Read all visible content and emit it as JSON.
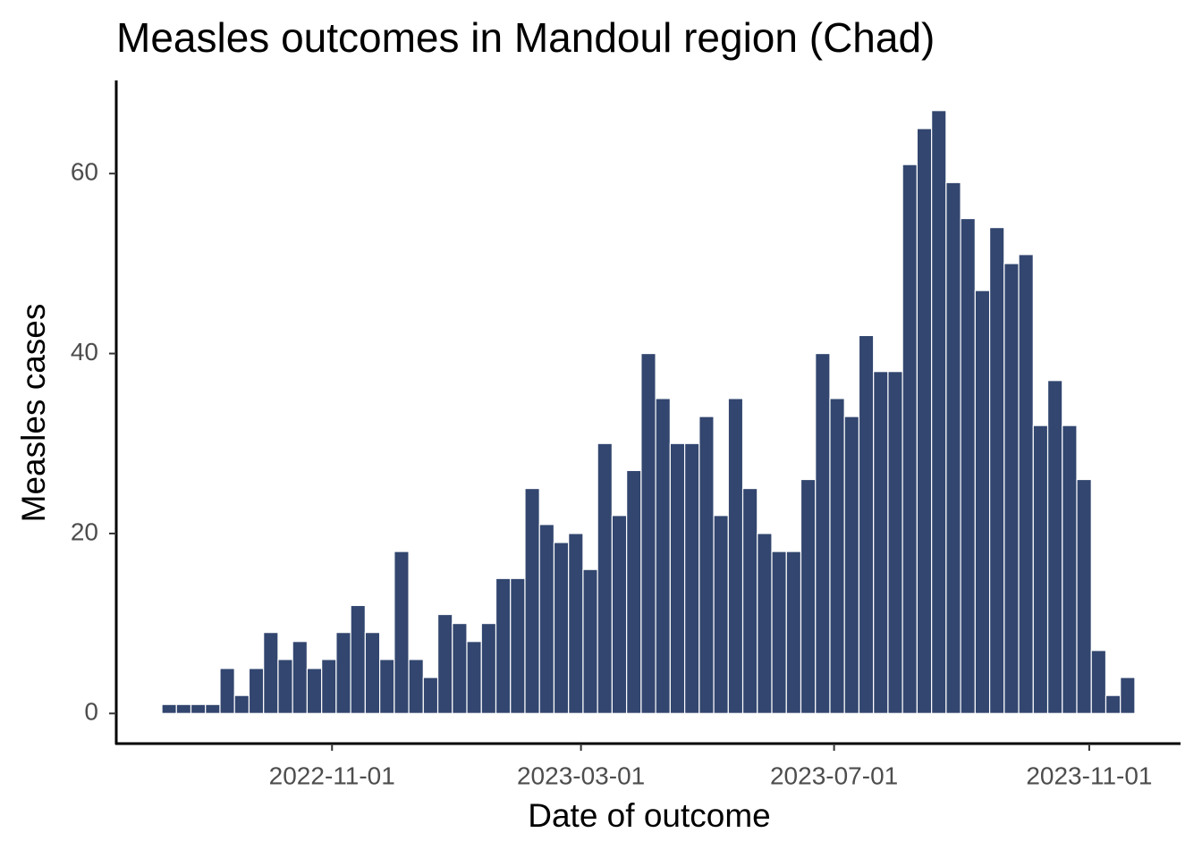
{
  "chart_data": {
    "type": "histogram",
    "title": "Measles outcomes in Mandoul region (Chad)",
    "x_label": "Date of outcome",
    "y_label": "Measles cases",
    "color": "#32466f",
    "bins": [
      "2022-08-11",
      "2022-08-18",
      "2022-08-25",
      "2022-09-01",
      "2022-09-08",
      "2022-09-15",
      "2022-09-22",
      "2022-09-29",
      "2022-10-06",
      "2022-10-13",
      "2022-10-20",
      "2022-10-27",
      "2022-11-03",
      "2022-11-10",
      "2022-11-17",
      "2022-11-24",
      "2022-12-01",
      "2022-12-08",
      "2022-12-15",
      "2022-12-22",
      "2022-12-29",
      "2023-01-05",
      "2023-01-12",
      "2023-01-19",
      "2023-01-26",
      "2023-02-02",
      "2023-02-09",
      "2023-02-16",
      "2023-02-23",
      "2023-03-02",
      "2023-03-09",
      "2023-03-16",
      "2023-03-23",
      "2023-03-30",
      "2023-04-06",
      "2023-04-13",
      "2023-04-20",
      "2023-04-27",
      "2023-05-04",
      "2023-05-11",
      "2023-05-18",
      "2023-05-25",
      "2023-06-01",
      "2023-06-08",
      "2023-06-15",
      "2023-06-22",
      "2023-06-29",
      "2023-07-06",
      "2023-07-13",
      "2023-07-20",
      "2023-07-27",
      "2023-08-03",
      "2023-08-10",
      "2023-08-17",
      "2023-08-24",
      "2023-08-31",
      "2023-09-07",
      "2023-09-14",
      "2023-09-21",
      "2023-09-28",
      "2023-10-05",
      "2023-10-12",
      "2023-10-19",
      "2023-10-26",
      "2023-11-02",
      "2023-11-09",
      "2023-11-16",
      "2023-11-23"
    ],
    "values": [
      1,
      1,
      1,
      1,
      5,
      2,
      5,
      9,
      6,
      8,
      5,
      6,
      9,
      12,
      9,
      6,
      18,
      6,
      4,
      11,
      10,
      8,
      10,
      15,
      15,
      25,
      21,
      19,
      20,
      16,
      30,
      22,
      27,
      40,
      35,
      30,
      30,
      33,
      22,
      35,
      25,
      20,
      18,
      18,
      26,
      40,
      35,
      33,
      42,
      38,
      38,
      61,
      65,
      67,
      59,
      55,
      47,
      54,
      50,
      51,
      32,
      37,
      32,
      26,
      7,
      2,
      4
    ],
    "xlim": [
      "2022-07-20",
      "2023-12-15"
    ],
    "xticks": [
      "2022-11-01",
      "2023-03-01",
      "2023-07-01",
      "2023-11-01"
    ],
    "ylim": [
      -3.35,
      70.35
    ],
    "yticks": [
      0,
      20,
      40,
      60
    ],
    "grid": false
  }
}
